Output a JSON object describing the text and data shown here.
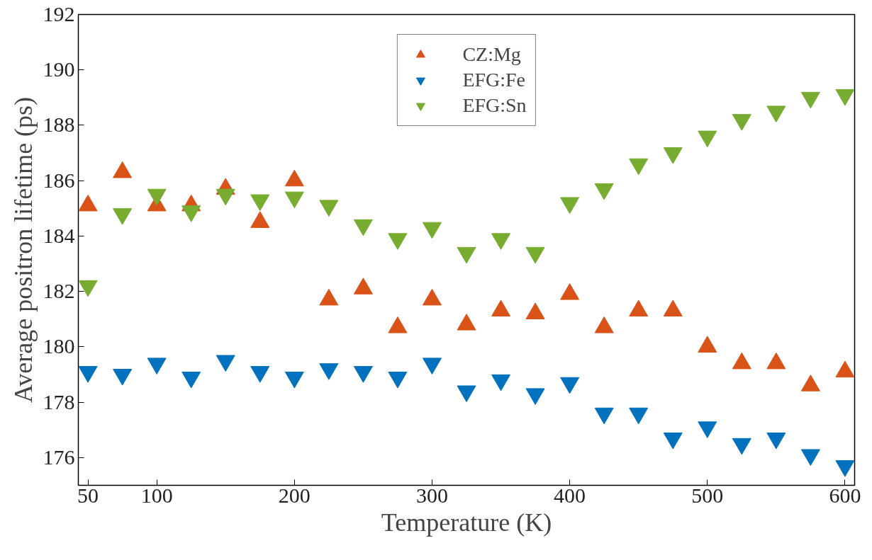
{
  "chart_data": {
    "type": "scatter",
    "xlabel": "Temperature (K)",
    "ylabel": "Average positron lifetime (ps)",
    "x": [
      50,
      75,
      100,
      125,
      150,
      175,
      200,
      225,
      250,
      275,
      300,
      325,
      350,
      375,
      400,
      425,
      450,
      475,
      500,
      525,
      550,
      575,
      600
    ],
    "series": [
      {
        "name": "CZ:Mg",
        "color": "#d95319",
        "marker": "triangle",
        "values": [
          185.1,
          186.3,
          185.1,
          185.1,
          185.7,
          184.5,
          186.0,
          181.7,
          182.1,
          180.7,
          181.7,
          180.8,
          181.3,
          181.2,
          181.9,
          180.7,
          181.3,
          181.3,
          180.0,
          179.4,
          179.4,
          178.6,
          179.1
        ]
      },
      {
        "name": "EFG:Fe",
        "color": "#0072bd",
        "marker": "triangle",
        "values": [
          179.1,
          179.0,
          179.4,
          178.9,
          179.5,
          179.1,
          178.9,
          179.2,
          179.1,
          178.9,
          179.4,
          178.4,
          178.8,
          178.3,
          178.7,
          177.6,
          177.6,
          176.7,
          177.1,
          176.5,
          176.7,
          176.1,
          175.7
        ]
      },
      {
        "name": "EFG:Sn",
        "color": "#77ac30",
        "marker": "triangle",
        "values": [
          182.2,
          184.8,
          185.5,
          184.9,
          185.5,
          185.3,
          185.4,
          185.1,
          184.4,
          183.9,
          184.3,
          183.4,
          183.9,
          183.4,
          185.2,
          185.7,
          186.6,
          187.0,
          187.6,
          188.2,
          188.5,
          189.0,
          189.1
        ]
      }
    ],
    "xlim": [
      43,
      607
    ],
    "ylim": [
      175,
      192
    ],
    "xticks": [
      50,
      100,
      200,
      300,
      400,
      500,
      600
    ],
    "yticks": [
      176,
      178,
      180,
      182,
      184,
      186,
      188,
      190,
      192
    ],
    "grid": false,
    "legend": "top"
  }
}
